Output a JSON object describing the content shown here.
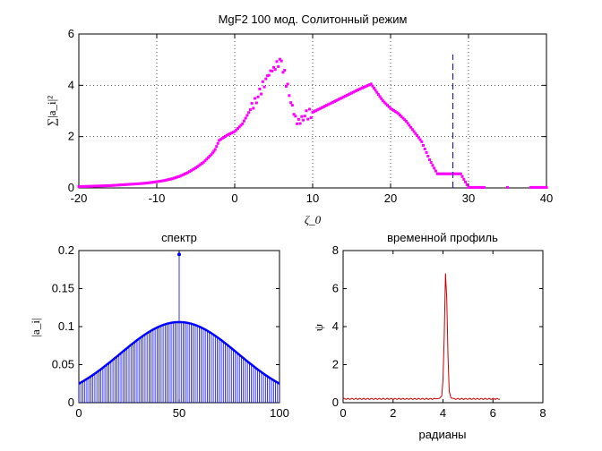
{
  "figure": {
    "background": "#ffffff"
  },
  "chart_data": [
    {
      "type": "scatter",
      "title": "MgF2 100 мод. Солитонный режим",
      "ylabel": "∑|a_i|²",
      "xlabel": "ζ_0",
      "xlim": [
        -20,
        40
      ],
      "ylim": [
        0,
        6
      ],
      "xticks": [
        -20,
        -10,
        0,
        10,
        20,
        30,
        40
      ],
      "yticks": [
        0,
        2,
        4,
        6
      ],
      "xtick_labels": [
        "-20",
        "-10",
        "0",
        "10",
        "20",
        "30",
        "40"
      ],
      "ytick_labels": [
        "0",
        "2",
        "4",
        "6"
      ],
      "grid": true,
      "marker_color": "#ff00ff",
      "vline": {
        "x": 28,
        "y0": 0,
        "y1": 5.2,
        "color": "#0000aa",
        "style": "dashed"
      },
      "points": [
        [
          -20,
          0.05
        ],
        [
          -19,
          0.06
        ],
        [
          -18,
          0.07
        ],
        [
          -17,
          0.08
        ],
        [
          -16,
          0.09
        ],
        [
          -15,
          0.11
        ],
        [
          -14,
          0.13
        ],
        [
          -13,
          0.15
        ],
        [
          -12,
          0.17
        ],
        [
          -11,
          0.2
        ],
        [
          -10,
          0.24
        ],
        [
          -9,
          0.29
        ],
        [
          -8,
          0.36
        ],
        [
          -7,
          0.46
        ],
        [
          -6,
          0.6
        ],
        [
          -5,
          0.78
        ],
        [
          -4,
          1.0
        ],
        [
          -3,
          1.3
        ],
        [
          -2.5,
          1.5
        ],
        [
          -2,
          1.85
        ],
        [
          -1,
          2.05
        ],
        [
          0,
          2.2
        ],
        [
          1,
          2.5
        ],
        [
          2,
          3.05
        ],
        [
          3,
          3.55
        ],
        [
          4,
          4.25
        ],
        [
          5,
          4.7
        ],
        [
          6,
          4.95
        ],
        [
          7,
          3.6
        ],
        [
          8,
          2.5
        ],
        [
          9,
          2.8
        ],
        [
          10,
          2.95
        ],
        [
          12,
          3.25
        ],
        [
          14,
          3.55
        ],
        [
          16,
          3.85
        ],
        [
          17.5,
          4.05
        ],
        [
          19,
          3.4
        ],
        [
          20,
          3.1
        ],
        [
          21,
          2.9
        ],
        [
          22,
          2.6
        ],
        [
          23,
          2.2
        ],
        [
          24,
          1.8
        ],
        [
          25,
          1.1
        ],
        [
          26,
          0.55
        ],
        [
          28,
          0.55
        ],
        [
          29,
          0.55
        ],
        [
          30,
          0.02
        ],
        [
          32,
          0.02
        ],
        [
          35,
          0.02
        ],
        [
          38,
          0.02
        ],
        [
          40,
          0.02
        ]
      ]
    },
    {
      "type": "bar",
      "title": "спектр",
      "ylabel": "|a_i|",
      "xlim": [
        0,
        100
      ],
      "ylim": [
        0,
        0.2
      ],
      "xticks": [
        0,
        50,
        100
      ],
      "yticks": [
        0,
        0.05,
        0.1,
        0.15,
        0.2
      ],
      "xtick_labels": [
        "0",
        "50",
        "100"
      ],
      "ytick_labels": [
        "0",
        "0.05",
        "0.1",
        "0.15",
        "0.2"
      ],
      "color": "#0000ff",
      "peak_index": 50,
      "peak_value": 0.195,
      "envelope_peak": 0.106,
      "envelope_edge": 0.025
    },
    {
      "type": "line",
      "title": "временной профиль",
      "xlabel": "радианы",
      "ylabel": "ψ",
      "xlim": [
        0,
        8
      ],
      "ylim": [
        0,
        8
      ],
      "xticks": [
        0,
        2,
        4,
        6,
        8
      ],
      "yticks": [
        0,
        2,
        4,
        6,
        8
      ],
      "xtick_labels": [
        "0",
        "2",
        "4",
        "6",
        "8"
      ],
      "ytick_labels": [
        "0",
        "2",
        "4",
        "6",
        "8"
      ],
      "color": "#cc0000",
      "x_end": 6.28,
      "baseline": 0.2,
      "peak": [
        4.1,
        6.8
      ],
      "points": [
        [
          0,
          0.2
        ],
        [
          3.7,
          0.2
        ],
        [
          3.85,
          0.22
        ],
        [
          3.95,
          0.35
        ],
        [
          4.0,
          1.2
        ],
        [
          4.05,
          3.5
        ],
        [
          4.1,
          6.8
        ],
        [
          4.15,
          5.5
        ],
        [
          4.2,
          2.5
        ],
        [
          4.25,
          0.6
        ],
        [
          4.32,
          0.25
        ],
        [
          4.5,
          0.2
        ],
        [
          6.28,
          0.2
        ]
      ]
    }
  ]
}
